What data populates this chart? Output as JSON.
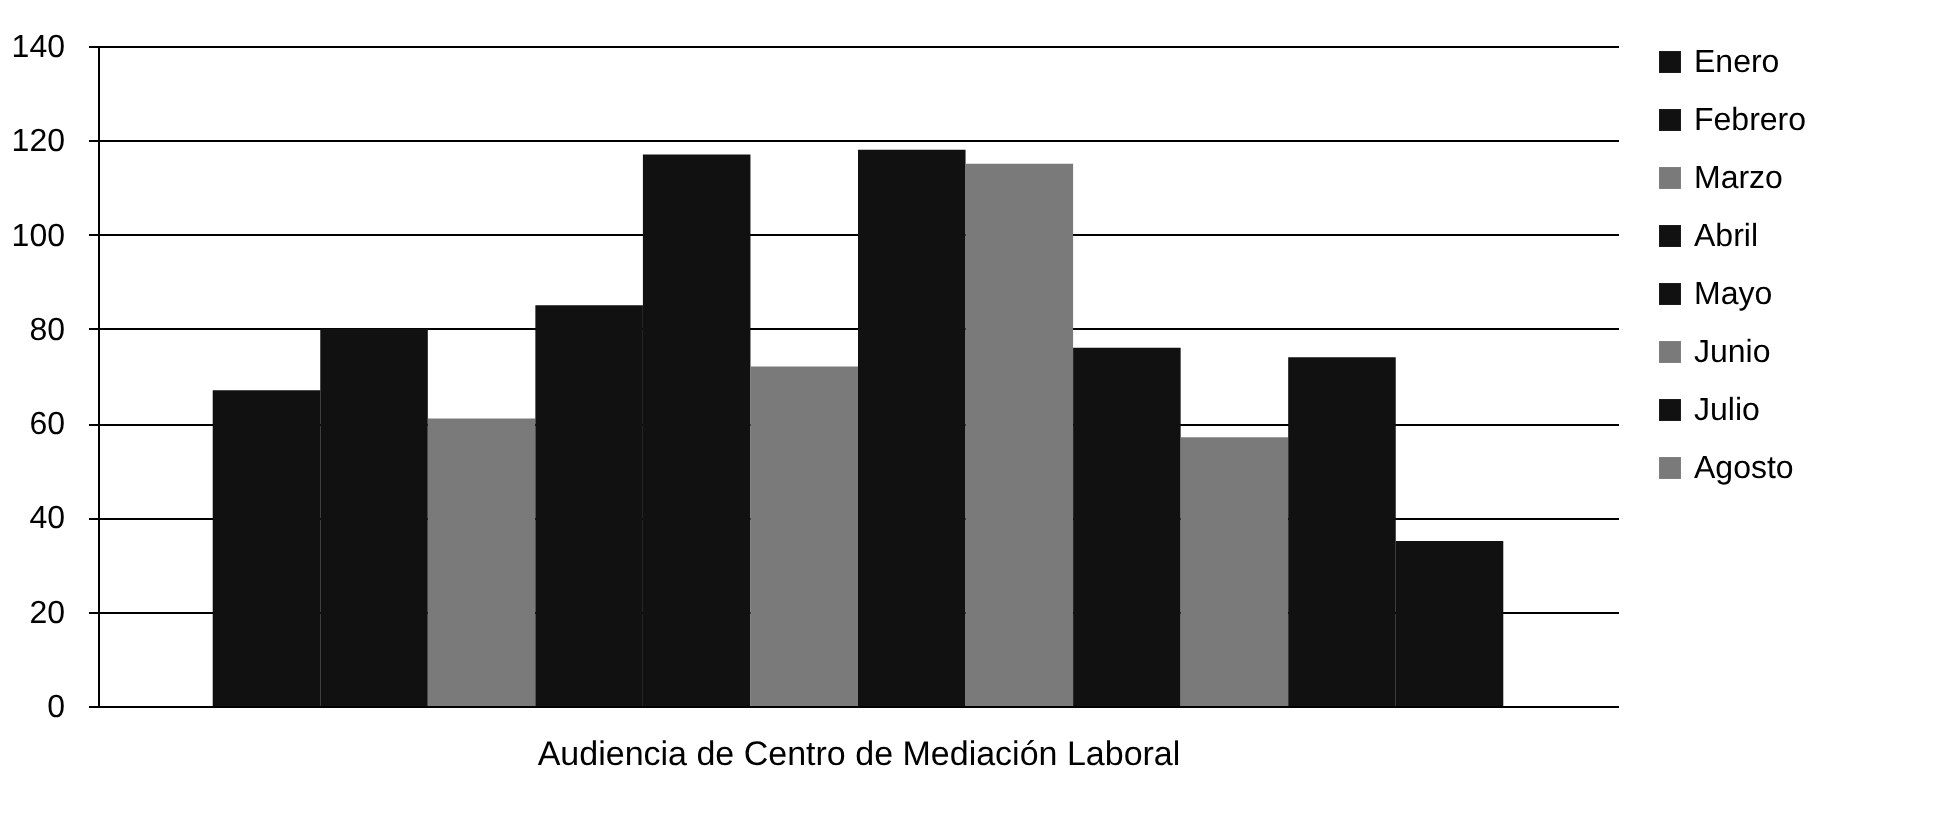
{
  "chart_data": {
    "type": "bar",
    "xlabel": "Audiencia de Centro de Mediación Laboral",
    "categories": [
      null
    ],
    "series": [
      {
        "name": "Enero",
        "color": "#111111",
        "values": [
          67
        ]
      },
      {
        "name": "Febrero",
        "color": "#111111",
        "values": [
          80
        ]
      },
      {
        "name": "Marzo",
        "color": "#7a7a7a",
        "values": [
          61
        ]
      },
      {
        "name": "Abril",
        "color": "#111111",
        "values": [
          85
        ]
      },
      {
        "name": "Mayo",
        "color": "#111111",
        "values": [
          117
        ]
      },
      {
        "name": "Junio",
        "color": "#7a7a7a",
        "values": [
          72
        ]
      },
      {
        "name": "Julio",
        "color": "#111111",
        "values": [
          118
        ]
      },
      {
        "name": "Agosto",
        "color": "#7a7a7a",
        "values": [
          115
        ]
      },
      {
        "color": "#111111",
        "values": [
          76
        ]
      },
      {
        "color": "#7a7a7a",
        "values": [
          57
        ]
      },
      {
        "color": "#111111",
        "values": [
          74
        ]
      },
      {
        "color": "#111111",
        "values": [
          35
        ]
      }
    ],
    "ylim": [
      0,
      140
    ],
    "yticks": [
      0,
      20,
      40,
      60,
      80,
      100,
      120,
      140
    ],
    "grid": "y",
    "legend": "right"
  }
}
